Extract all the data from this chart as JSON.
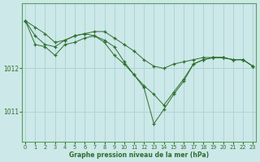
{
  "xlabel": "Graphe pression niveau de la mer (hPa)",
  "background_color": "#cce8e8",
  "grid_color": "#aed4d4",
  "line_color": "#2d6e2d",
  "ylim": [
    1010.3,
    1013.5
  ],
  "yticks": [
    1011,
    1012
  ],
  "xlim": [
    -0.3,
    23.3
  ],
  "xticks": [
    0,
    1,
    2,
    3,
    4,
    5,
    6,
    7,
    8,
    9,
    10,
    11,
    12,
    13,
    14,
    15,
    16,
    17,
    18,
    19,
    20,
    21,
    22,
    23
  ],
  "series": [
    [
      1013.1,
      1012.95,
      1012.8,
      1012.6,
      1012.65,
      1012.75,
      1012.8,
      1012.85,
      1012.85,
      1012.7,
      1012.55,
      1012.4,
      1012.2,
      1012.05,
      1012.0,
      1012.1,
      1012.15,
      1012.2,
      1012.25,
      1012.25,
      1012.25,
      1012.2,
      1012.2,
      1012.05
    ],
    [
      1013.1,
      1012.75,
      1012.55,
      1012.5,
      1012.65,
      1012.75,
      1012.8,
      1012.75,
      1012.6,
      1012.3,
      1012.1,
      1011.85,
      1011.6,
      1011.4,
      1011.15,
      1011.45,
      1011.75,
      1012.1,
      1012.2,
      1012.25,
      1012.25,
      1012.2,
      1012.2,
      1012.05
    ],
    [
      1013.1,
      1012.55,
      1012.5,
      1012.3,
      1012.55,
      1012.6,
      1012.7,
      1012.75,
      1012.65,
      1012.5,
      1012.15,
      1011.85,
      1011.55,
      1010.72,
      1011.05,
      1011.4,
      1011.7,
      1012.1,
      1012.2,
      1012.25,
      1012.25,
      1012.2,
      1012.2,
      1012.05
    ]
  ]
}
